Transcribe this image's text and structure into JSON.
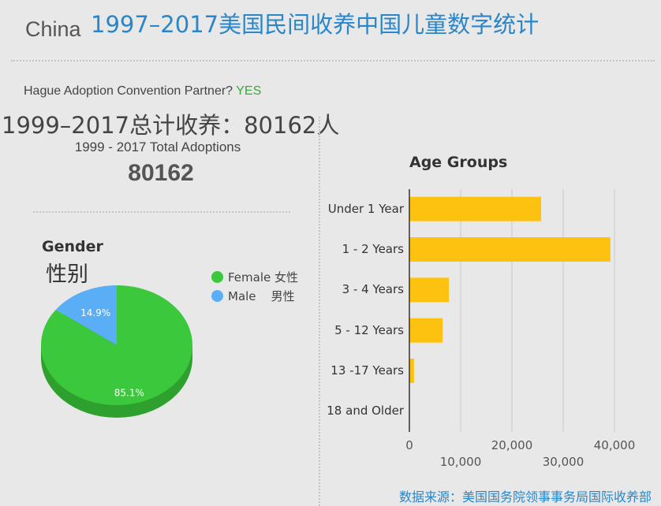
{
  "header": {
    "country": "China",
    "title": "1997–2017美国民间收养中国儿童数字统计"
  },
  "summary": {
    "hague_label": "Hague Adoption Convention Partner?",
    "hague_value": "YES",
    "cn_total": "1999–2017总计收养：80162人",
    "en_total_label": "1999 - 2017 Total Adoptions",
    "en_total_value": "80162"
  },
  "colors": {
    "female": "#3cc83c",
    "male": "#5aaef5",
    "bar": "#fdc210",
    "title": "#2a86c8",
    "yes": "#3aa83a"
  },
  "chart_data": [
    {
      "type": "pie",
      "title": "Gender",
      "subtitle": "性别",
      "legend_position": "top-right",
      "slices": [
        {
          "name": "Female 女性",
          "value": 85.1,
          "label": "85.1%"
        },
        {
          "name": "Male    男性",
          "value": 14.9,
          "label": "14.9%"
        }
      ]
    },
    {
      "type": "bar",
      "orientation": "horizontal",
      "title": "Age Groups",
      "categories": [
        "Under 1 Year",
        "1 - 2 Years",
        "3 - 4 Years",
        "5 - 12 Years",
        "13 -17 Years",
        "18 and Older"
      ],
      "values": [
        25700,
        39200,
        7700,
        6500,
        900,
        0
      ],
      "xlim": [
        0,
        40000
      ],
      "xticks": [
        "0",
        "10,000",
        "20,000",
        "30,000",
        "40,000"
      ],
      "grid": true
    }
  ],
  "footer": {
    "source": "数据来源：美国国务院领事事务局国际收养部"
  }
}
